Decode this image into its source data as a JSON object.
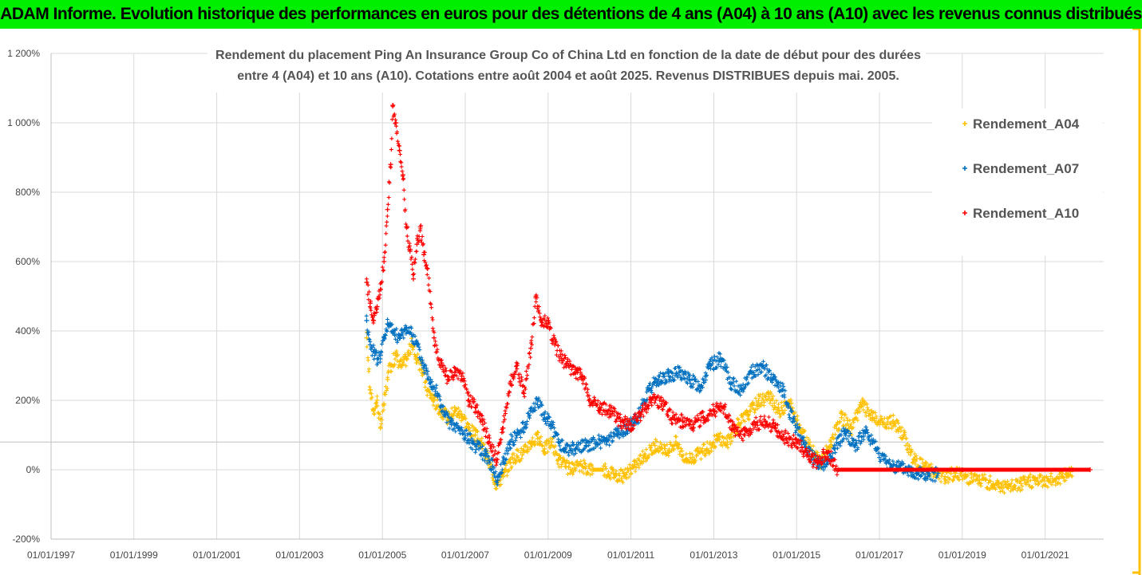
{
  "header": {
    "title": "ADAM Informe. Evolution historique des performances en euros pour des détentions de 4 ans (A04) à 10 ans (A10) avec les revenus connus distribués",
    "background_color": "#00ee00"
  },
  "chart_data": {
    "type": "scatter",
    "title_lines": [
      "Rendement du placement Ping An Insurance Group Co of China Ltd en fonction de la date de début pour des durées",
      "entre 4 (A04) et 10 ans (A10). Cotations entre août 2004 et août 2025. Revenus DISTRIBUES depuis mai. 2005."
    ],
    "xlabel": "",
    "ylabel": "",
    "x_range": [
      "1997-01-01",
      "2022-06-01"
    ],
    "y_range": [
      -200,
      1200
    ],
    "y_unit": "%",
    "x_tick_labels": [
      "01/01/1997",
      "01/01/1999",
      "01/01/2001",
      "01/01/2003",
      "01/01/2005",
      "01/01/2007",
      "01/01/2009",
      "01/01/2011",
      "01/01/2013",
      "01/01/2015",
      "01/01/2017",
      "01/01/2019",
      "01/01/2021"
    ],
    "y_tick_labels": [
      "-200%",
      "0%",
      "200%",
      "400%",
      "600%",
      "800%",
      "1 000%",
      "1 200%"
    ],
    "grid": true,
    "legend_position": "right",
    "series": [
      {
        "name": "Rendement_A04",
        "color": "#ffc000",
        "marker": "+",
        "points": [
          [
            "2004-08-15",
            380
          ],
          [
            "2004-09-15",
            230
          ],
          [
            "2004-10-15",
            170
          ],
          [
            "2004-11-15",
            200
          ],
          [
            "2004-12-15",
            120
          ],
          [
            "2005-01-15",
            190
          ],
          [
            "2005-02-15",
            260
          ],
          [
            "2005-03-15",
            300
          ],
          [
            "2005-05-01",
            330
          ],
          [
            "2005-06-15",
            300
          ],
          [
            "2005-08-01",
            320
          ],
          [
            "2005-09-15",
            360
          ],
          [
            "2005-11-01",
            320
          ],
          [
            "2005-12-15",
            290
          ],
          [
            "2006-02-01",
            230
          ],
          [
            "2006-04-01",
            200
          ],
          [
            "2006-06-01",
            170
          ],
          [
            "2006-08-01",
            150
          ],
          [
            "2006-10-01",
            170
          ],
          [
            "2006-12-01",
            160
          ],
          [
            "2007-02-01",
            120
          ],
          [
            "2007-04-01",
            100
          ],
          [
            "2007-06-01",
            70
          ],
          [
            "2007-08-01",
            20
          ],
          [
            "2007-10-01",
            -40
          ],
          [
            "2007-12-01",
            -20
          ],
          [
            "2008-02-01",
            20
          ],
          [
            "2008-04-01",
            40
          ],
          [
            "2008-06-01",
            50
          ],
          [
            "2008-08-01",
            80
          ],
          [
            "2008-10-01",
            90
          ],
          [
            "2008-12-01",
            60
          ],
          [
            "2009-02-01",
            80
          ],
          [
            "2009-04-01",
            30
          ],
          [
            "2009-06-01",
            10
          ],
          [
            "2009-08-01",
            0
          ],
          [
            "2009-11-01",
            10
          ],
          [
            "2010-02-01",
            0
          ],
          [
            "2010-05-01",
            0
          ],
          [
            "2010-08-01",
            -10
          ],
          [
            "2010-11-01",
            -20
          ],
          [
            "2011-02-01",
            10
          ],
          [
            "2011-05-01",
            40
          ],
          [
            "2011-08-01",
            70
          ],
          [
            "2011-11-01",
            50
          ],
          [
            "2012-02-01",
            80
          ],
          [
            "2012-05-01",
            30
          ],
          [
            "2012-08-01",
            40
          ],
          [
            "2012-11-01",
            60
          ],
          [
            "2013-02-01",
            90
          ],
          [
            "2013-05-01",
            80
          ],
          [
            "2013-08-01",
            130
          ],
          [
            "2013-11-01",
            160
          ],
          [
            "2014-02-01",
            200
          ],
          [
            "2014-05-01",
            210
          ],
          [
            "2014-08-01",
            170
          ],
          [
            "2014-11-01",
            190
          ],
          [
            "2015-02-01",
            120
          ],
          [
            "2015-05-01",
            60
          ],
          [
            "2015-08-01",
            20
          ],
          [
            "2015-11-01",
            80
          ],
          [
            "2016-02-01",
            150
          ],
          [
            "2016-05-01",
            120
          ],
          [
            "2016-08-01",
            190
          ],
          [
            "2016-11-01",
            150
          ],
          [
            "2017-02-01",
            130
          ],
          [
            "2017-05-01",
            140
          ],
          [
            "2017-08-01",
            100
          ],
          [
            "2017-11-01",
            30
          ],
          [
            "2018-02-01",
            10
          ],
          [
            "2018-05-01",
            -10
          ],
          [
            "2018-08-01",
            -20
          ],
          [
            "2018-11-01",
            -10
          ],
          [
            "2019-02-01",
            -20
          ],
          [
            "2019-06-01",
            -30
          ],
          [
            "2019-10-01",
            -40
          ],
          [
            "2020-02-01",
            -50
          ],
          [
            "2020-06-01",
            -40
          ],
          [
            "2020-10-01",
            -30
          ],
          [
            "2021-02-01",
            -30
          ],
          [
            "2021-06-01",
            -20
          ],
          [
            "2021-09-01",
            0
          ]
        ]
      },
      {
        "name": "Rendement_A07",
        "color": "#0070c0",
        "marker": "+",
        "points": [
          [
            "2004-08-15",
            430
          ],
          [
            "2004-09-15",
            360
          ],
          [
            "2004-10-15",
            340
          ],
          [
            "2004-11-15",
            320
          ],
          [
            "2004-12-15",
            330
          ],
          [
            "2005-01-15",
            380
          ],
          [
            "2005-02-15",
            420
          ],
          [
            "2005-04-01",
            400
          ],
          [
            "2005-06-01",
            380
          ],
          [
            "2005-08-01",
            410
          ],
          [
            "2005-09-15",
            390
          ],
          [
            "2005-11-01",
            360
          ],
          [
            "2006-01-01",
            300
          ],
          [
            "2006-03-01",
            260
          ],
          [
            "2006-05-01",
            220
          ],
          [
            "2006-07-01",
            160
          ],
          [
            "2006-09-01",
            130
          ],
          [
            "2006-11-01",
            120
          ],
          [
            "2007-01-01",
            100
          ],
          [
            "2007-03-01",
            80
          ],
          [
            "2007-05-01",
            60
          ],
          [
            "2007-07-01",
            40
          ],
          [
            "2007-09-01",
            10
          ],
          [
            "2007-10-15",
            -30
          ],
          [
            "2007-12-01",
            20
          ],
          [
            "2008-02-01",
            80
          ],
          [
            "2008-04-01",
            100
          ],
          [
            "2008-06-01",
            120
          ],
          [
            "2008-08-01",
            170
          ],
          [
            "2008-10-01",
            200
          ],
          [
            "2008-12-01",
            150
          ],
          [
            "2009-02-01",
            130
          ],
          [
            "2009-04-01",
            80
          ],
          [
            "2009-06-01",
            60
          ],
          [
            "2009-09-01",
            60
          ],
          [
            "2009-12-01",
            70
          ],
          [
            "2010-03-01",
            80
          ],
          [
            "2010-06-01",
            80
          ],
          [
            "2010-09-01",
            100
          ],
          [
            "2010-12-01",
            120
          ],
          [
            "2011-03-01",
            150
          ],
          [
            "2011-06-01",
            230
          ],
          [
            "2011-09-01",
            260
          ],
          [
            "2011-12-01",
            270
          ],
          [
            "2012-03-01",
            280
          ],
          [
            "2012-06-01",
            260
          ],
          [
            "2012-09-01",
            240
          ],
          [
            "2012-12-01",
            300
          ],
          [
            "2013-03-01",
            320
          ],
          [
            "2013-06-01",
            250
          ],
          [
            "2013-09-01",
            230
          ],
          [
            "2013-12-01",
            280
          ],
          [
            "2014-03-01",
            300
          ],
          [
            "2014-06-01",
            260
          ],
          [
            "2014-09-01",
            230
          ],
          [
            "2014-12-01",
            140
          ],
          [
            "2015-03-01",
            80
          ],
          [
            "2015-06-01",
            30
          ],
          [
            "2015-09-01",
            10
          ],
          [
            "2015-12-01",
            60
          ],
          [
            "2016-03-01",
            110
          ],
          [
            "2016-06-01",
            70
          ],
          [
            "2016-09-01",
            110
          ],
          [
            "2016-12-01",
            60
          ],
          [
            "2017-03-01",
            20
          ],
          [
            "2017-06-01",
            10
          ],
          [
            "2017-09-01",
            0
          ],
          [
            "2017-12-01",
            -10
          ],
          [
            "2018-03-01",
            -20
          ],
          [
            "2018-06-01",
            -10
          ]
        ]
      },
      {
        "name": "Rendement_A10",
        "color": "#ff0000",
        "marker": "+",
        "points": [
          [
            "2004-08-15",
            540
          ],
          [
            "2004-09-15",
            480
          ],
          [
            "2004-10-15",
            430
          ],
          [
            "2004-11-15",
            470
          ],
          [
            "2004-12-15",
            520
          ],
          [
            "2005-01-15",
            600
          ],
          [
            "2005-02-15",
            750
          ],
          [
            "2005-03-15",
            880
          ],
          [
            "2005-04-01",
            1050
          ],
          [
            "2005-05-01",
            1000
          ],
          [
            "2005-06-01",
            920
          ],
          [
            "2005-07-01",
            850
          ],
          [
            "2005-08-01",
            700
          ],
          [
            "2005-09-01",
            630
          ],
          [
            "2005-10-01",
            550
          ],
          [
            "2005-11-01",
            650
          ],
          [
            "2005-12-01",
            700
          ],
          [
            "2006-01-01",
            620
          ],
          [
            "2006-02-01",
            580
          ],
          [
            "2006-04-01",
            380
          ],
          [
            "2006-06-01",
            300
          ],
          [
            "2006-08-01",
            260
          ],
          [
            "2006-10-01",
            280
          ],
          [
            "2006-12-01",
            270
          ],
          [
            "2007-02-01",
            200
          ],
          [
            "2007-04-01",
            180
          ],
          [
            "2007-06-01",
            140
          ],
          [
            "2007-08-01",
            80
          ],
          [
            "2007-10-01",
            30
          ],
          [
            "2007-12-01",
            120
          ],
          [
            "2008-02-01",
            250
          ],
          [
            "2008-04-01",
            300
          ],
          [
            "2008-06-01",
            220
          ],
          [
            "2008-08-01",
            350
          ],
          [
            "2008-09-15",
            500
          ],
          [
            "2008-11-01",
            430
          ],
          [
            "2009-01-01",
            420
          ],
          [
            "2009-03-01",
            360
          ],
          [
            "2009-05-01",
            320
          ],
          [
            "2009-07-01",
            300
          ],
          [
            "2009-09-01",
            280
          ],
          [
            "2009-11-01",
            270
          ],
          [
            "2010-01-01",
            200
          ],
          [
            "2010-04-01",
            180
          ],
          [
            "2010-07-01",
            170
          ],
          [
            "2010-10-01",
            140
          ],
          [
            "2011-01-01",
            130
          ],
          [
            "2011-04-01",
            160
          ],
          [
            "2011-07-01",
            200
          ],
          [
            "2011-10-01",
            190
          ],
          [
            "2012-01-01",
            150
          ],
          [
            "2012-04-01",
            140
          ],
          [
            "2012-07-01",
            130
          ],
          [
            "2012-10-01",
            150
          ],
          [
            "2013-01-01",
            170
          ],
          [
            "2013-04-01",
            180
          ],
          [
            "2013-07-01",
            110
          ],
          [
            "2013-10-01",
            100
          ],
          [
            "2014-01-01",
            130
          ],
          [
            "2014-04-01",
            140
          ],
          [
            "2014-07-01",
            120
          ],
          [
            "2014-10-01",
            90
          ],
          [
            "2015-01-01",
            80
          ],
          [
            "2015-04-01",
            40
          ],
          [
            "2015-07-01",
            20
          ],
          [
            "2015-10-01",
            50
          ],
          [
            "2016-01-01",
            0
          ],
          [
            "2019-01-01",
            0
          ],
          [
            "2022-02-01",
            0
          ]
        ]
      }
    ]
  }
}
